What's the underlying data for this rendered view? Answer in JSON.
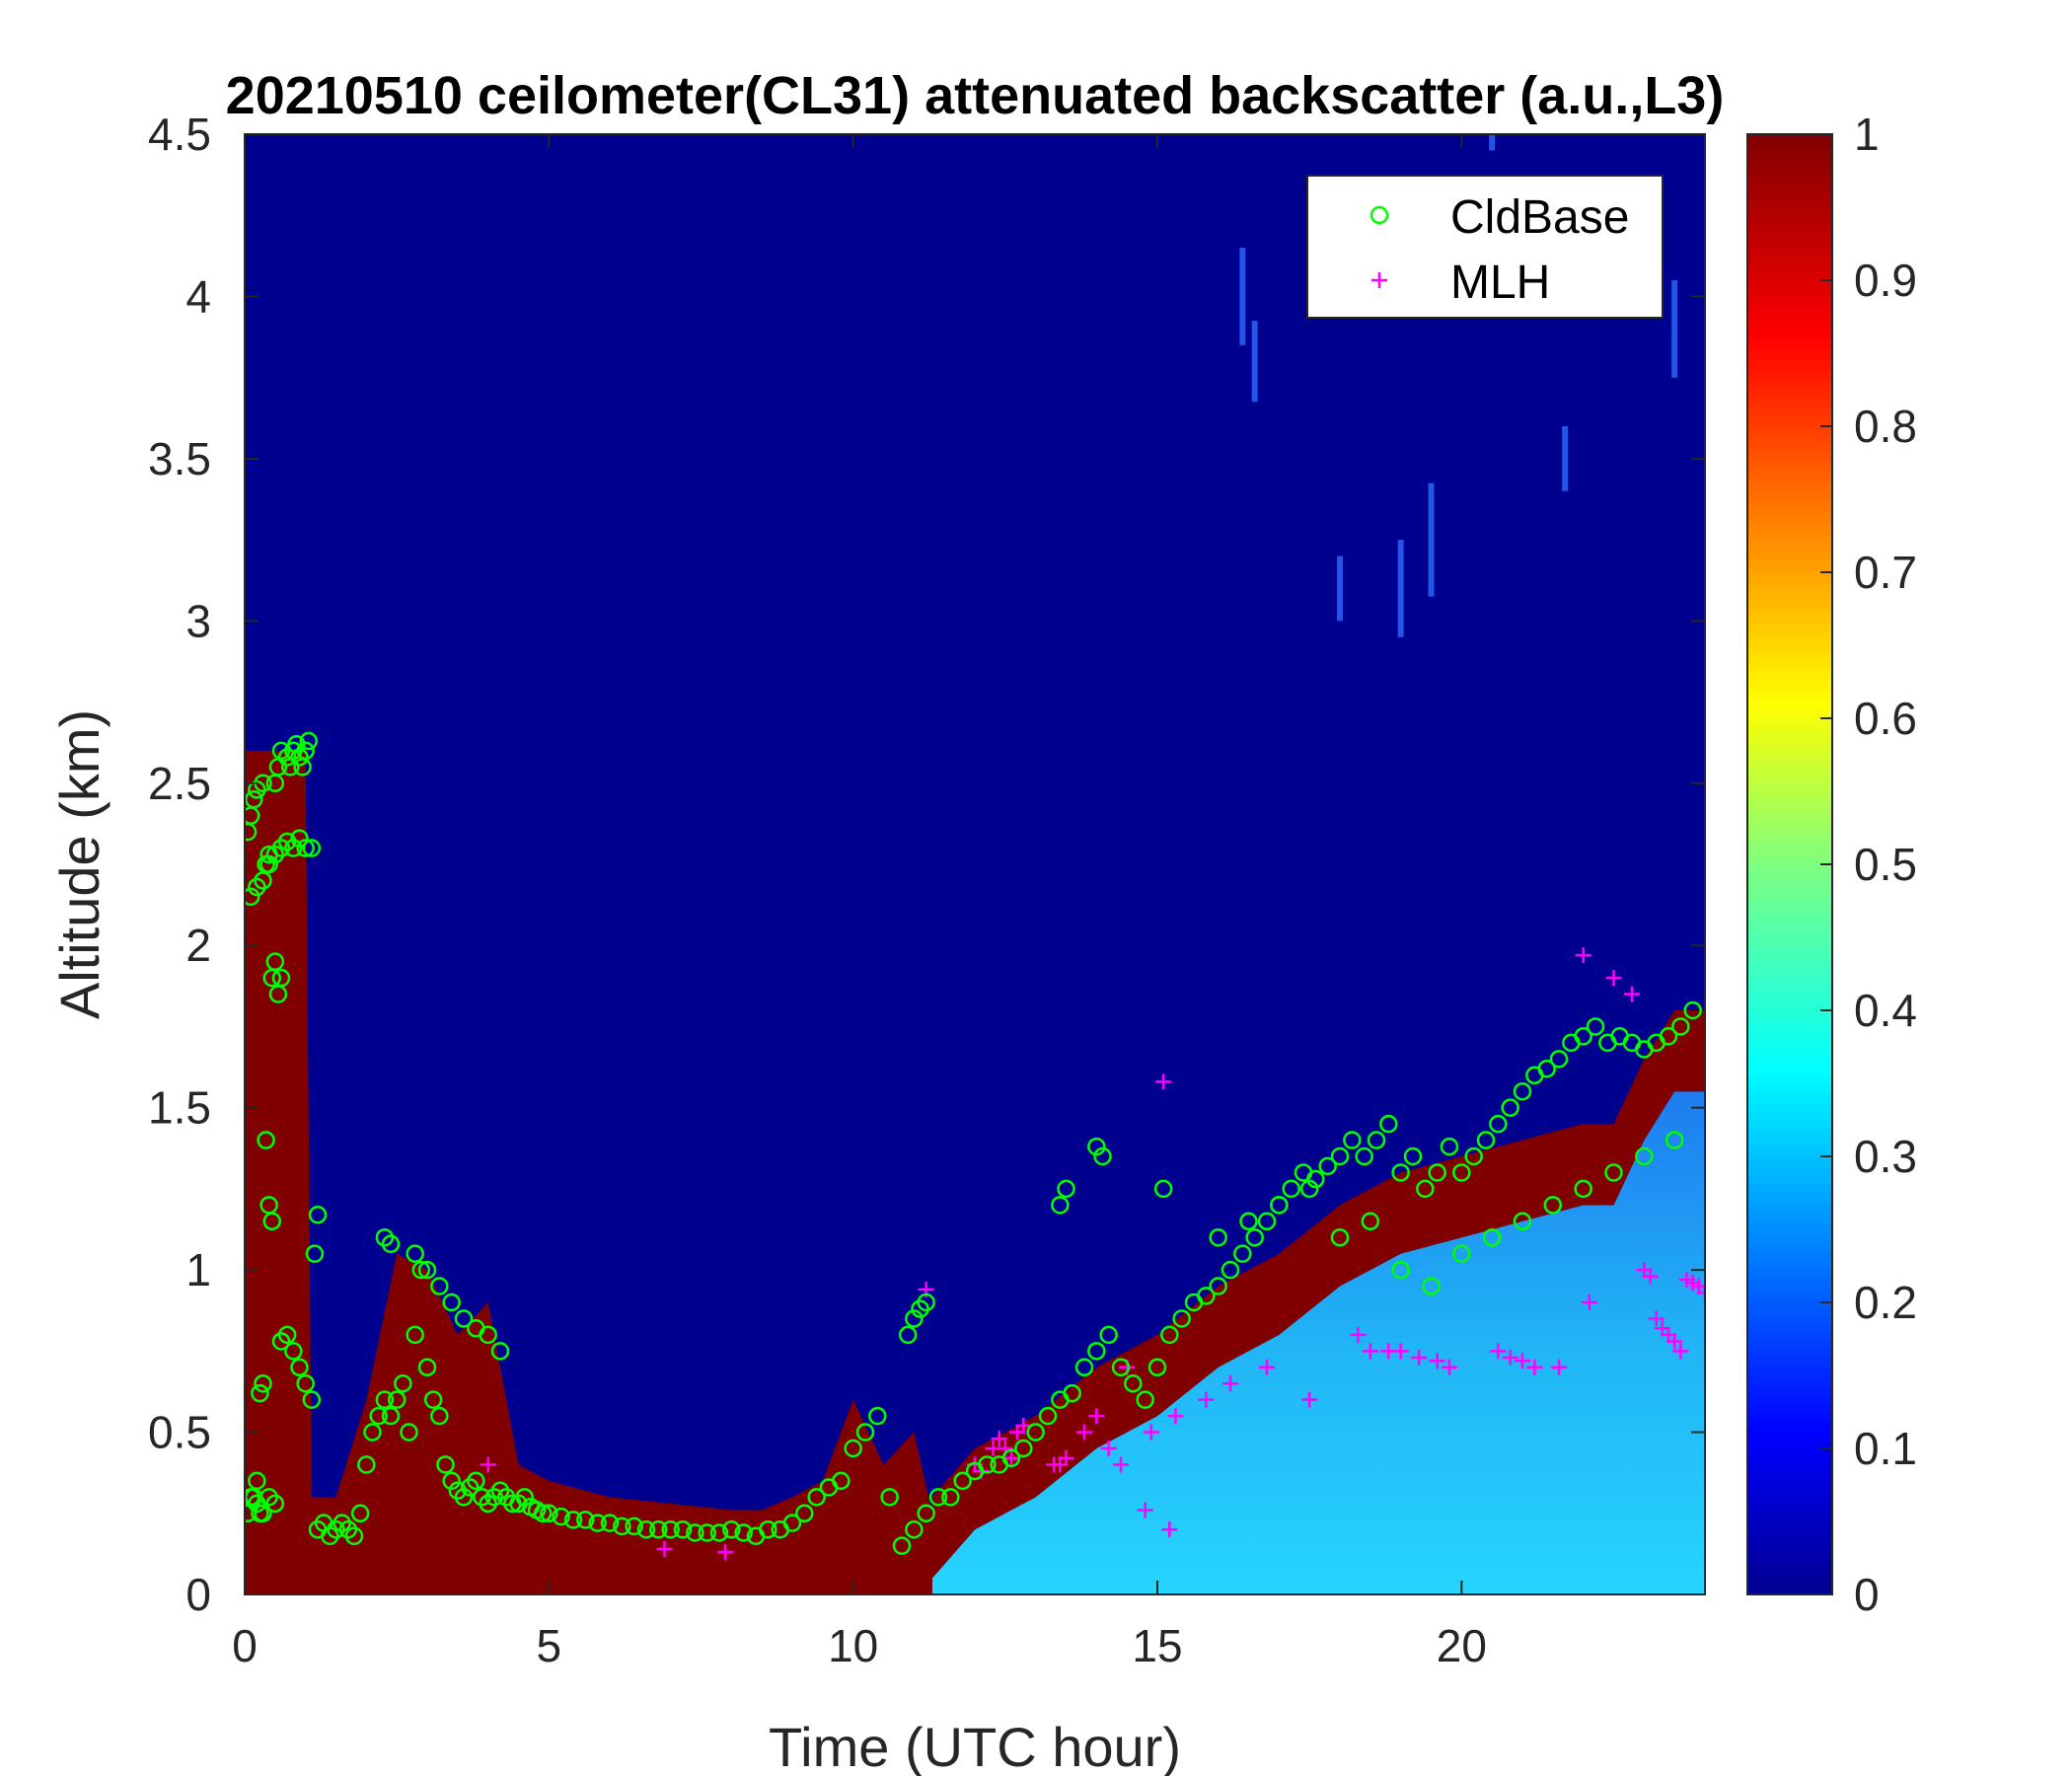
{
  "chart_data": {
    "type": "heatmap",
    "title": "20210510 ceilometer(CL31) attenuated backscatter (a.u.,L3)",
    "xlabel": "Time (UTC hour)",
    "ylabel": "Altitude (km)",
    "xlim": [
      0,
      24
    ],
    "ylim": [
      0,
      4.5
    ],
    "xticks": [
      0,
      5,
      10,
      15,
      20
    ],
    "xtick_labels": [
      "0",
      "5",
      "10",
      "15",
      "20"
    ],
    "yticks": [
      0,
      0.5,
      1,
      1.5,
      2,
      2.5,
      3,
      3.5,
      4,
      4.5
    ],
    "ytick_labels": [
      "0",
      "0.5",
      "1",
      "1.5",
      "2",
      "2.5",
      "3",
      "3.5",
      "4",
      "4.5"
    ],
    "colorbar": {
      "colormap": "jet",
      "range": [
        0,
        1
      ],
      "ticks": [
        0,
        0.1,
        0.2,
        0.3,
        0.4,
        0.5,
        0.6,
        0.7,
        0.8,
        0.9,
        1
      ],
      "tick_labels": [
        "0",
        "0.1",
        "0.2",
        "0.3",
        "0.4",
        "0.5",
        "0.6",
        "0.7",
        "0.8",
        "0.9",
        "1"
      ]
    },
    "legend": {
      "placement": "top-right",
      "entries": [
        {
          "name": "CldBase",
          "marker": "circle",
          "color": "#00ff00"
        },
        {
          "name": "MLH",
          "marker": "plus",
          "color": "#ff00ff"
        }
      ]
    },
    "backscatter_top_profile": {
      "description_units": "time hour vs altitude km of strong backscatter layer top",
      "time": [
        0,
        0.5,
        1.0,
        1.1,
        1.5,
        2.0,
        2.5,
        3.0,
        3.5,
        4.0,
        4.5,
        5.0,
        6.0,
        7.0,
        8.0,
        8.5,
        9.0,
        9.5,
        10.0,
        10.5,
        11.0,
        11.3
      ],
      "altitude": [
        2.6,
        2.6,
        2.6,
        0.3,
        0.3,
        0.6,
        1.05,
        1.0,
        0.8,
        0.9,
        0.4,
        0.35,
        0.3,
        0.28,
        0.26,
        0.26,
        0.3,
        0.35,
        0.6,
        0.4,
        0.5,
        0.25
      ]
    },
    "aerosol_layer_top": {
      "time": [
        11.3,
        12,
        13,
        14,
        15,
        16,
        17,
        18,
        19,
        20,
        21,
        22,
        22.5,
        23,
        23.5,
        24
      ],
      "altitude": [
        0.05,
        0.2,
        0.3,
        0.45,
        0.55,
        0.7,
        0.8,
        0.95,
        1.05,
        1.1,
        1.15,
        1.2,
        1.2,
        1.4,
        1.55,
        1.55
      ]
    },
    "series": [
      {
        "name": "CldBase",
        "x": [
          0.05,
          0.1,
          0.15,
          0.2,
          0.3,
          0.35,
          0.4,
          0.5,
          0.55,
          0.6,
          0.7,
          0.75,
          0.8,
          0.85,
          0.9,
          0.95,
          1.0,
          1.05,
          1.1,
          0.1,
          0.2,
          0.3,
          0.4,
          0.5,
          0.6,
          0.7,
          0.8,
          0.9,
          1.0,
          0.45,
          0.5,
          0.55,
          0.6,
          0.35,
          0.4,
          0.45,
          0.3,
          0.25,
          0.15,
          0.2,
          0.25,
          0.05,
          0.1,
          0.2,
          0.3,
          0.4,
          0.5,
          0.6,
          0.7,
          0.8,
          0.9,
          1.0,
          1.1,
          1.2,
          1.3,
          1.4,
          1.5,
          1.6,
          1.7,
          1.8,
          1.9,
          2.0,
          2.1,
          2.2,
          2.3,
          2.4,
          2.5,
          2.6,
          2.7,
          2.8,
          2.9,
          3.0,
          3.1,
          3.2,
          3.3,
          3.4,
          3.5,
          3.6,
          3.7,
          3.8,
          3.9,
          4.0,
          4.1,
          4.2,
          4.3,
          4.4,
          4.5,
          4.6,
          4.7,
          4.8,
          4.9,
          5.0,
          5.2,
          5.4,
          5.6,
          5.8,
          6.0,
          6.2,
          6.4,
          6.6,
          6.8,
          7.0,
          7.2,
          7.4,
          7.6,
          7.8,
          8.0,
          8.2,
          8.4,
          8.6,
          8.8,
          9.0,
          9.2,
          9.4,
          9.6,
          9.8,
          10.0,
          10.2,
          10.4,
          10.6,
          10.8,
          11.0,
          11.2,
          11.4,
          11.6,
          11.8,
          12.0,
          12.2,
          12.4,
          12.6,
          12.8,
          13.0,
          13.2,
          13.4,
          13.6,
          13.8,
          14.0,
          14.2,
          14.4,
          14.6,
          14.8,
          15.0,
          15.2,
          15.4,
          15.6,
          15.8,
          16.0,
          16.2,
          16.4,
          16.6,
          16.8,
          17.0,
          17.2,
          17.4,
          17.6,
          17.8,
          18.0,
          18.2,
          18.4,
          18.6,
          18.8,
          19.0,
          19.2,
          19.4,
          19.6,
          19.8,
          20.0,
          20.2,
          20.4,
          20.6,
          20.8,
          21.0,
          21.2,
          21.4,
          21.6,
          21.8,
          22.0,
          22.2,
          22.4,
          22.6,
          22.8,
          23.0,
          23.2,
          23.4,
          23.6,
          23.8,
          1.2,
          1.15,
          2.3,
          2.4,
          2.8,
          3.0,
          3.2,
          3.4,
          3.6,
          3.8,
          4.0,
          4.2,
          10.9,
          11.0,
          11.1,
          11.2,
          13.4,
          13.5,
          14.0,
          14.1,
          15.1,
          16.0,
          16.5,
          17.0,
          17.5,
          18.0,
          18.5,
          19.0,
          19.5,
          20.0,
          20.5,
          21.0,
          21.5,
          22.0,
          22.5,
          23.0,
          23.5
        ],
        "y": [
          2.35,
          2.4,
          2.45,
          2.48,
          2.5,
          2.25,
          2.28,
          2.5,
          2.55,
          2.6,
          2.58,
          2.55,
          2.6,
          2.62,
          2.58,
          2.55,
          2.6,
          2.63,
          2.3,
          2.15,
          2.18,
          2.2,
          2.25,
          2.28,
          2.3,
          2.32,
          2.3,
          2.33,
          2.3,
          1.9,
          1.95,
          1.85,
          1.9,
          1.4,
          1.2,
          1.15,
          0.65,
          0.62,
          0.3,
          0.35,
          0.25,
          0.25,
          0.3,
          0.28,
          0.25,
          0.3,
          0.28,
          0.78,
          0.8,
          0.75,
          0.7,
          0.65,
          0.6,
          0.2,
          0.22,
          0.18,
          0.2,
          0.22,
          0.2,
          0.18,
          0.25,
          0.4,
          0.5,
          0.55,
          0.6,
          0.55,
          0.6,
          0.65,
          0.5,
          0.8,
          1.0,
          0.7,
          0.6,
          0.55,
          0.4,
          0.35,
          0.32,
          0.3,
          0.33,
          0.35,
          0.3,
          0.28,
          0.3,
          0.32,
          0.3,
          0.28,
          0.28,
          0.3,
          0.27,
          0.26,
          0.25,
          0.25,
          0.24,
          0.23,
          0.23,
          0.22,
          0.22,
          0.21,
          0.21,
          0.2,
          0.2,
          0.2,
          0.2,
          0.19,
          0.19,
          0.19,
          0.2,
          0.19,
          0.18,
          0.2,
          0.2,
          0.22,
          0.25,
          0.3,
          0.33,
          0.35,
          0.45,
          0.5,
          0.55,
          0.3,
          0.15,
          0.2,
          0.25,
          0.3,
          0.3,
          0.35,
          0.38,
          0.4,
          0.4,
          0.42,
          0.45,
          0.5,
          0.55,
          0.6,
          0.62,
          0.7,
          0.75,
          0.8,
          0.7,
          0.65,
          0.6,
          0.7,
          0.8,
          0.85,
          0.9,
          0.92,
          0.95,
          1.0,
          1.05,
          1.1,
          1.15,
          1.2,
          1.25,
          1.3,
          1.28,
          1.32,
          1.35,
          1.4,
          1.35,
          1.4,
          1.45,
          1.3,
          1.35,
          1.25,
          1.3,
          1.38,
          1.3,
          1.35,
          1.4,
          1.45,
          1.5,
          1.55,
          1.6,
          1.62,
          1.65,
          1.7,
          1.72,
          1.75,
          1.7,
          1.72,
          1.7,
          1.68,
          1.7,
          1.72,
          1.75,
          1.8,
          1.17,
          1.05,
          1.1,
          1.08,
          1.05,
          1.0,
          0.95,
          0.9,
          0.85,
          0.82,
          0.8,
          0.75,
          0.8,
          0.85,
          0.88,
          0.9,
          1.2,
          1.25,
          1.38,
          1.35,
          1.25,
          1.1,
          1.15,
          1.2,
          1.25,
          1.1,
          1.15,
          1.0,
          0.95,
          1.05,
          1.1,
          1.15,
          1.2,
          1.25,
          1.3,
          1.35,
          1.4
        ]
      },
      {
        "name": "MLH",
        "x": [
          4.0,
          6.9,
          7.9,
          11.2,
          12.0,
          12.1,
          12.3,
          12.4,
          12.5,
          12.6,
          12.7,
          12.8,
          13.3,
          13.4,
          13.5,
          13.8,
          14.2,
          14.5,
          14.8,
          14.9,
          15.1,
          15.2,
          15.3,
          15.8,
          16.2,
          16.8,
          17.5,
          18.3,
          18.5,
          18.8,
          19.0,
          19.3,
          19.6,
          19.8,
          20.6,
          20.8,
          21.0,
          21.2,
          21.6,
          22.0,
          22.1,
          22.5,
          22.8,
          23.0,
          23.1,
          23.2,
          23.3,
          23.4,
          23.5,
          23.6,
          23.7,
          23.8,
          23.9,
          24.0,
          14.0,
          14.4
        ],
        "y": [
          0.4,
          0.14,
          0.13,
          0.94,
          0.4,
          0.38,
          0.45,
          0.48,
          0.45,
          0.42,
          0.5,
          0.52,
          0.4,
          0.4,
          0.42,
          0.5,
          0.45,
          0.7,
          0.26,
          0.5,
          1.58,
          0.2,
          0.55,
          0.6,
          0.65,
          0.7,
          0.6,
          0.8,
          0.75,
          0.75,
          0.75,
          0.73,
          0.72,
          0.7,
          0.75,
          0.73,
          0.72,
          0.7,
          0.7,
          1.97,
          0.9,
          1.9,
          1.85,
          1.0,
          0.98,
          0.85,
          0.82,
          0.8,
          0.78,
          0.75,
          0.97,
          0.96,
          0.95,
          0.93,
          0.55,
          0.4
        ]
      }
    ]
  }
}
